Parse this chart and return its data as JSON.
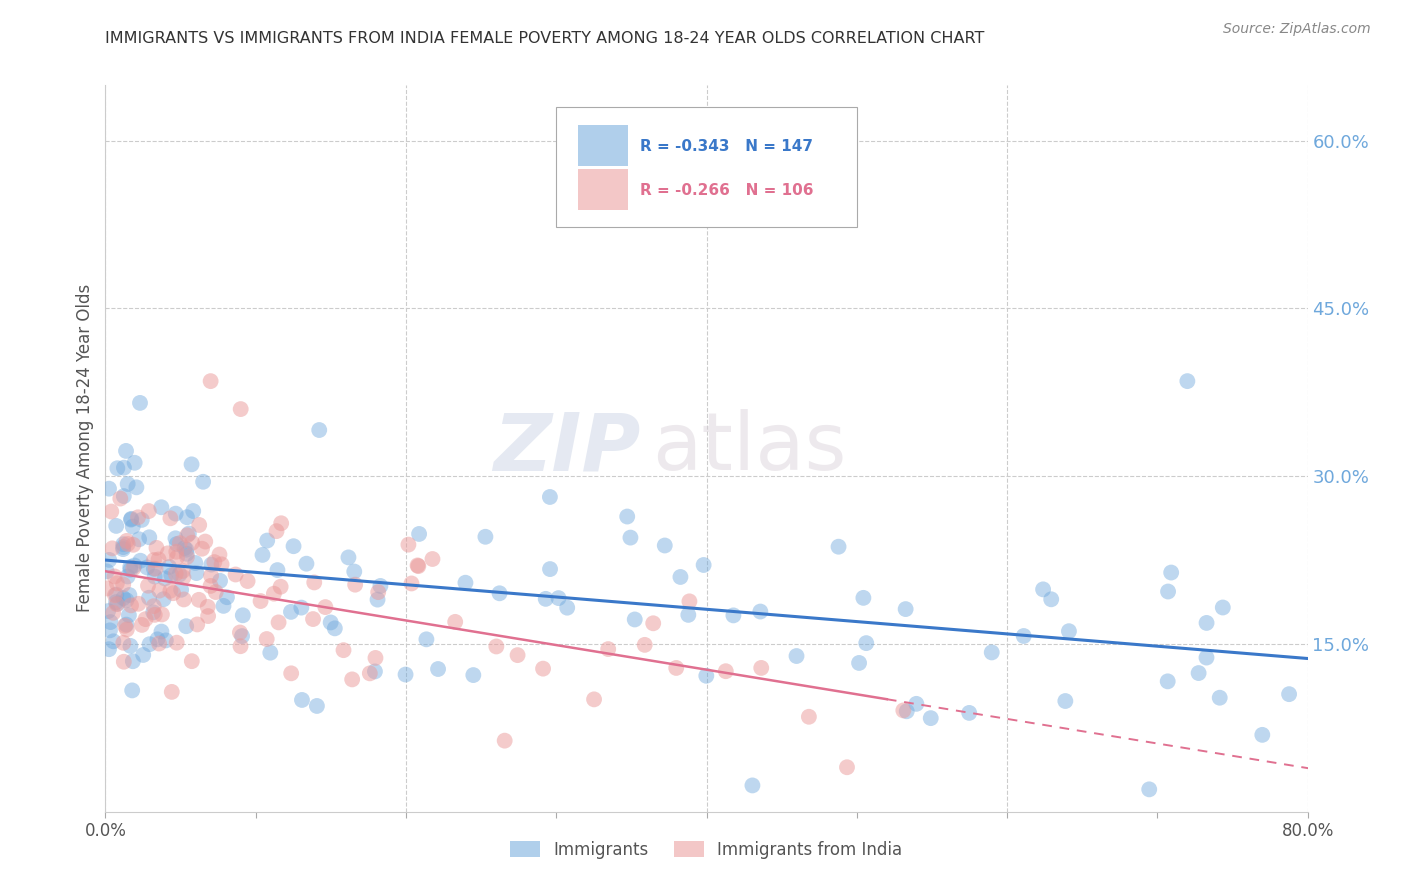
{
  "title": "IMMIGRANTS VS IMMIGRANTS FROM INDIA FEMALE POVERTY AMONG 18-24 YEAR OLDS CORRELATION CHART",
  "source": "Source: ZipAtlas.com",
  "ylabel": "Female Poverty Among 18-24 Year Olds",
  "xlim": [
    0.0,
    0.8
  ],
  "ylim": [
    0.0,
    0.65
  ],
  "yticks_right": [
    0.15,
    0.3,
    0.45,
    0.6
  ],
  "ytick_right_labels": [
    "15.0%",
    "30.0%",
    "45.0%",
    "60.0%"
  ],
  "blue_color": "#6fa8dc",
  "pink_color": "#ea9999",
  "blue_line_color": "#3a78c9",
  "pink_line_color": "#e07090",
  "legend_blue_R": "R = -0.343",
  "legend_blue_N": "N = 147",
  "legend_pink_R": "R = -0.266",
  "legend_pink_N": "N = 106",
  "legend_label_blue": "Immigrants",
  "legend_label_pink": "Immigrants from India",
  "watermark_zip": "ZIP",
  "watermark_atlas": "atlas",
  "blue_intercept": 0.225,
  "blue_slope": -0.11,
  "pink_intercept": 0.215,
  "pink_slope": -0.22,
  "background_color": "#ffffff",
  "grid_color": "#cccccc",
  "title_color": "#333333",
  "right_tick_color": "#6fa8dc"
}
